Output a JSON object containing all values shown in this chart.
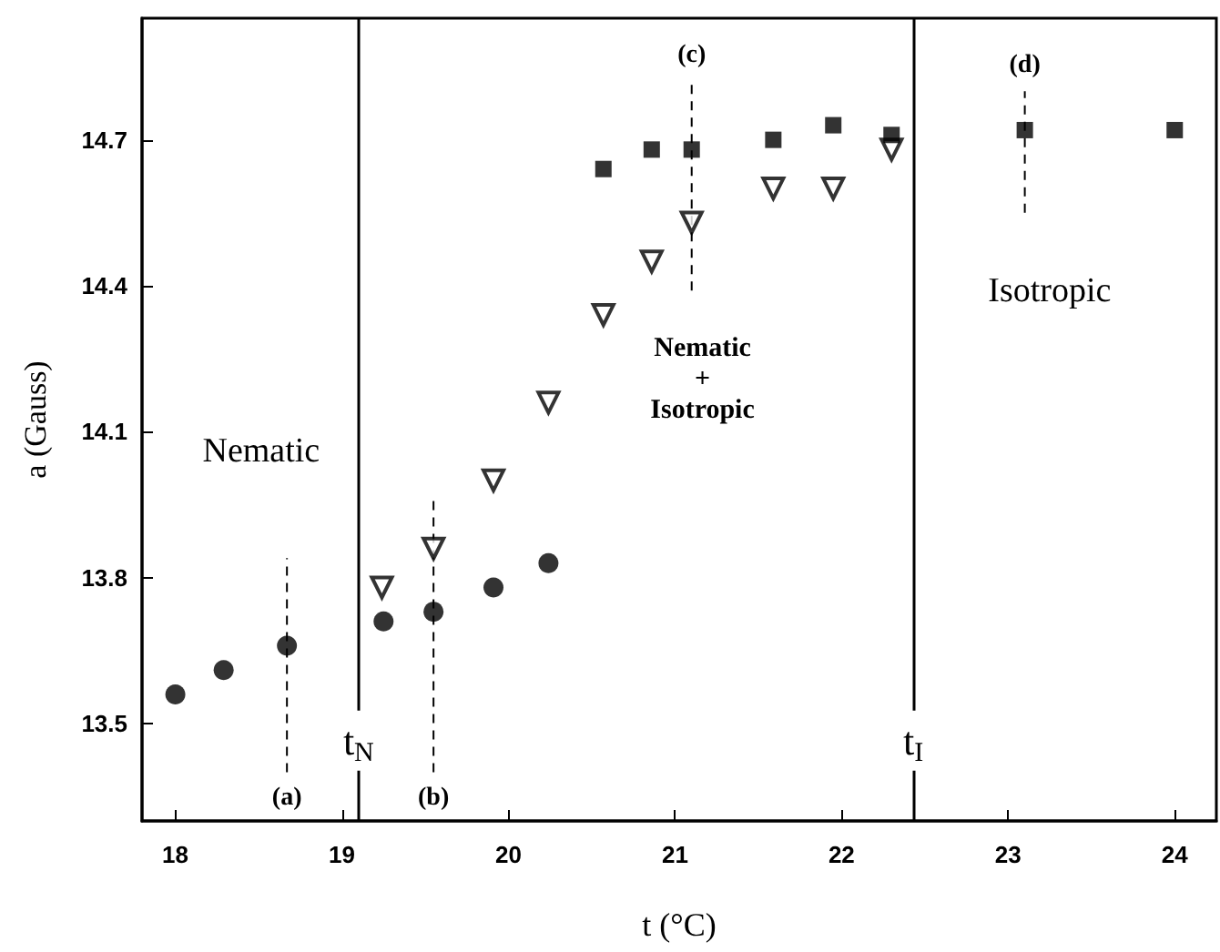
{
  "chart_data": {
    "type": "scatter",
    "xlabel": "t (°C)",
    "ylabel": "a (Gauss)",
    "xlim": [
      17.8,
      24.25
    ],
    "ylim": [
      13.3,
      14.95
    ],
    "xticks": [
      18,
      19,
      20,
      21,
      22,
      23,
      24
    ],
    "yticks": [
      13.5,
      13.8,
      14.1,
      14.4,
      14.7
    ],
    "grid": false,
    "series": [
      {
        "marker": "circle",
        "color": "#000000",
        "x": [
          18.0,
          18.29,
          18.67
        ],
        "values": [
          13.56,
          13.61,
          13.66
        ]
      },
      {
        "marker": "circle",
        "color": "#000000",
        "x": [
          19.25,
          19.55,
          19.91,
          20.24
        ],
        "values": [
          13.71,
          13.73,
          13.78,
          13.83
        ]
      },
      {
        "marker": "triangle-down",
        "color": "#000000",
        "x": [
          19.24,
          19.55,
          19.91,
          20.24,
          20.57,
          20.86,
          21.1,
          21.59,
          21.95,
          22.3
        ],
        "values": [
          13.78,
          13.86,
          14.0,
          14.16,
          14.34,
          14.45,
          14.53,
          14.6,
          14.6,
          14.68
        ]
      },
      {
        "marker": "square",
        "color": "#000000",
        "x": [
          20.57,
          20.86,
          21.1,
          21.59,
          21.95,
          22.3
        ],
        "values": [
          14.64,
          14.68,
          14.68,
          14.7,
          14.73,
          14.71
        ]
      },
      {
        "marker": "square",
        "color": "#000000",
        "x": [
          23.1,
          24.0
        ],
        "values": [
          14.72,
          14.72
        ]
      },
      {
        "type": "line",
        "line_style": "dashed",
        "color": "#000000",
        "x": [
          18.67,
          18.67
        ],
        "values": [
          13.4,
          13.84
        ]
      },
      {
        "type": "line",
        "line_style": "dashed",
        "color": "#000000",
        "x": [
          19.55,
          19.55
        ],
        "values": [
          13.4,
          13.97
        ]
      },
      {
        "type": "line",
        "line_style": "dashed",
        "color": "#000000",
        "x": [
          21.1,
          21.1
        ],
        "values": [
          14.39,
          14.82
        ]
      },
      {
        "type": "line",
        "line_style": "dashed",
        "color": "#000000",
        "x": [
          23.1,
          23.1
        ],
        "values": [
          14.55,
          14.8
        ]
      }
    ],
    "ref_lines": [
      {
        "axis": "x",
        "value": 19.1,
        "label": "t$_{N}$"
      },
      {
        "axis": "x",
        "value": 22.43,
        "label": "t$_{I}$"
      }
    ],
    "annotations": [
      "(a)",
      "(b)",
      "(c)",
      "(d)",
      "Nematic",
      "Nematic\n+\nIsotropic",
      "Isotropic"
    ]
  }
}
